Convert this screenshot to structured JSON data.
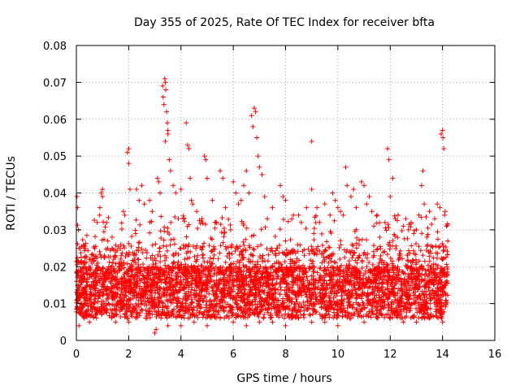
{
  "chart_data": {
    "type": "scatter",
    "title": "Day 355 of 2025, Rate Of TEC Index for receiver bfta",
    "xlabel": "GPS time / hours",
    "ylabel": "ROTI / TECUs",
    "xlim": [
      0,
      16
    ],
    "ylim": [
      0,
      0.08
    ],
    "xticks": [
      0,
      2,
      4,
      6,
      8,
      10,
      12,
      14,
      16
    ],
    "yticks": [
      0,
      0.01,
      0.02,
      0.03,
      0.04,
      0.05,
      0.06,
      0.07,
      0.08
    ],
    "xtick_labels": [
      "0",
      "2",
      "4",
      "6",
      "8",
      "10",
      "12",
      "14",
      "16"
    ],
    "ytick_labels": [
      "0",
      "0.01",
      "0.02",
      "0.03",
      "0.04",
      "0.05",
      "0.06",
      "0.07",
      "0.08"
    ],
    "grid": true,
    "marker": "+",
    "color": "#ff0000",
    "data_range": {
      "x_start": 0.0,
      "x_end": 14.2
    },
    "series": [
      {
        "name": "ROTI",
        "points": [
          [
            0.02,
            0.039
          ],
          [
            0.05,
            0.036
          ],
          [
            0.08,
            0.03
          ],
          [
            0.1,
            0.025
          ],
          [
            0.12,
            0.016
          ],
          [
            0.15,
            0.012
          ],
          [
            0.2,
            0.021
          ],
          [
            0.3,
            0.018
          ],
          [
            0.5,
            0.022
          ],
          [
            0.7,
            0.025
          ],
          [
            0.8,
            0.032
          ],
          [
            0.9,
            0.036
          ],
          [
            0.95,
            0.04
          ],
          [
            1.0,
            0.041
          ],
          [
            1.0,
            0.039
          ],
          [
            1.2,
            0.027
          ],
          [
            1.5,
            0.024
          ],
          [
            1.7,
            0.026
          ],
          [
            1.8,
            0.035
          ],
          [
            1.85,
            0.034
          ],
          [
            1.95,
            0.051
          ],
          [
            2.0,
            0.052
          ],
          [
            2.0,
            0.048
          ],
          [
            2.05,
            0.041
          ],
          [
            2.3,
            0.041
          ],
          [
            2.4,
            0.038
          ],
          [
            2.5,
            0.042
          ],
          [
            2.6,
            0.037
          ],
          [
            2.8,
            0.038
          ],
          [
            2.9,
            0.035
          ],
          [
            3.1,
            0.044
          ],
          [
            3.15,
            0.043
          ],
          [
            3.2,
            0.04
          ],
          [
            3.3,
            0.069
          ],
          [
            3.32,
            0.066
          ],
          [
            3.35,
            0.064
          ],
          [
            3.38,
            0.071
          ],
          [
            3.4,
            0.07
          ],
          [
            3.42,
            0.068
          ],
          [
            3.45,
            0.062
          ],
          [
            3.48,
            0.059
          ],
          [
            3.5,
            0.057
          ],
          [
            3.5,
            0.056
          ],
          [
            3.4,
            0.054
          ],
          [
            3.55,
            0.049
          ],
          [
            3.6,
            0.046
          ],
          [
            3.7,
            0.042
          ],
          [
            3.8,
            0.04
          ],
          [
            3.9,
            0.033
          ],
          [
            4.0,
            0.041
          ],
          [
            4.1,
            0.033
          ],
          [
            4.2,
            0.059
          ],
          [
            4.25,
            0.053
          ],
          [
            4.3,
            0.052
          ],
          [
            4.35,
            0.044
          ],
          [
            4.4,
            0.038
          ],
          [
            4.45,
            0.037
          ],
          [
            4.6,
            0.035
          ],
          [
            4.8,
            0.033
          ],
          [
            4.9,
            0.05
          ],
          [
            4.95,
            0.049
          ],
          [
            5.0,
            0.044
          ],
          [
            5.2,
            0.038
          ],
          [
            5.3,
            0.032
          ],
          [
            5.5,
            0.046
          ],
          [
            5.6,
            0.044
          ],
          [
            5.7,
            0.036
          ],
          [
            5.9,
            0.03
          ],
          [
            6.0,
            0.043
          ],
          [
            6.1,
            0.04
          ],
          [
            6.2,
            0.037
          ],
          [
            6.3,
            0.038
          ],
          [
            6.4,
            0.042
          ],
          [
            6.5,
            0.046
          ],
          [
            6.6,
            0.04
          ],
          [
            6.7,
            0.061
          ],
          [
            6.75,
            0.058
          ],
          [
            6.8,
            0.063
          ],
          [
            6.85,
            0.062
          ],
          [
            6.9,
            0.055
          ],
          [
            6.95,
            0.05
          ],
          [
            7.0,
            0.047
          ],
          [
            7.1,
            0.045
          ],
          [
            7.2,
            0.039
          ],
          [
            7.3,
            0.033
          ],
          [
            7.5,
            0.036
          ],
          [
            7.8,
            0.042
          ],
          [
            7.9,
            0.039
          ],
          [
            8.0,
            0.038
          ],
          [
            8.3,
            0.034
          ],
          [
            8.5,
            0.034
          ],
          [
            8.6,
            0.032
          ],
          [
            8.8,
            0.036
          ],
          [
            9.0,
            0.054
          ],
          [
            9.0,
            0.041
          ],
          [
            9.2,
            0.036
          ],
          [
            9.3,
            0.032
          ],
          [
            9.5,
            0.037
          ],
          [
            9.7,
            0.034
          ],
          [
            9.8,
            0.04
          ],
          [
            9.9,
            0.038
          ],
          [
            10.0,
            0.036
          ],
          [
            10.1,
            0.035
          ],
          [
            10.2,
            0.034
          ],
          [
            10.3,
            0.047
          ],
          [
            10.35,
            0.042
          ],
          [
            10.5,
            0.039
          ],
          [
            10.6,
            0.041
          ],
          [
            10.7,
            0.036
          ],
          [
            10.9,
            0.043
          ],
          [
            11.0,
            0.042
          ],
          [
            11.1,
            0.037
          ],
          [
            11.2,
            0.039
          ],
          [
            11.3,
            0.035
          ],
          [
            11.5,
            0.034
          ],
          [
            11.6,
            0.028
          ],
          [
            11.8,
            0.032
          ],
          [
            11.9,
            0.052
          ],
          [
            11.95,
            0.049
          ],
          [
            12.0,
            0.039
          ],
          [
            12.1,
            0.044
          ],
          [
            12.2,
            0.033
          ],
          [
            12.3,
            0.034
          ],
          [
            12.5,
            0.031
          ],
          [
            12.6,
            0.033
          ],
          [
            12.7,
            0.03
          ],
          [
            12.8,
            0.032
          ],
          [
            12.9,
            0.029
          ],
          [
            13.0,
            0.03
          ],
          [
            13.1,
            0.034
          ],
          [
            13.2,
            0.042
          ],
          [
            13.25,
            0.046
          ],
          [
            13.3,
            0.037
          ],
          [
            13.4,
            0.028
          ],
          [
            13.5,
            0.035
          ],
          [
            13.7,
            0.033
          ],
          [
            13.8,
            0.037
          ],
          [
            13.9,
            0.036
          ],
          [
            13.95,
            0.056
          ],
          [
            14.0,
            0.057
          ],
          [
            14.02,
            0.055
          ],
          [
            14.05,
            0.052
          ],
          [
            14.08,
            0.034
          ],
          [
            14.1,
            0.035
          ],
          [
            14.15,
            0.031
          ],
          [
            14.2,
            0.027
          ],
          [
            1.5,
            0.005
          ],
          [
            1.95,
            0.006
          ],
          [
            2.0,
            0.005
          ],
          [
            3.0,
            0.002
          ],
          [
            3.05,
            0.003
          ],
          [
            3.5,
            0.004
          ],
          [
            4.0,
            0.004
          ],
          [
            4.5,
            0.005
          ],
          [
            5.0,
            0.004
          ],
          [
            5.5,
            0.006
          ],
          [
            6.0,
            0.005
          ],
          [
            6.5,
            0.004
          ],
          [
            7.0,
            0.005
          ],
          [
            7.5,
            0.005
          ],
          [
            8.0,
            0.004
          ],
          [
            8.5,
            0.006
          ],
          [
            9.0,
            0.005
          ],
          [
            9.5,
            0.005
          ],
          [
            10.0,
            0.004
          ],
          [
            10.5,
            0.006
          ],
          [
            11.0,
            0.005
          ],
          [
            11.5,
            0.006
          ],
          [
            12.0,
            0.006
          ],
          [
            12.5,
            0.005
          ],
          [
            13.0,
            0.005
          ],
          [
            13.5,
            0.006
          ],
          [
            14.0,
            0.005
          ],
          [
            0.1,
            0.004
          ],
          [
            0.3,
            0.006
          ],
          [
            0.5,
            0.005
          ]
        ]
      }
    ]
  }
}
